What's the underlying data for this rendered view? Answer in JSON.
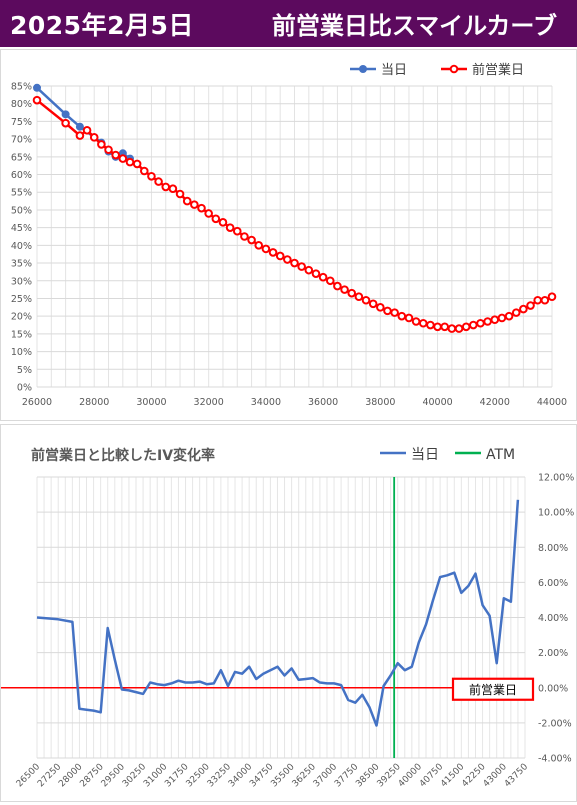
{
  "header": {
    "date": "2025年2月5日",
    "title": "前営業日比スマイルカーブ",
    "background": "#5c0a5e"
  },
  "chart_data": [
    {
      "type": "line",
      "title": "",
      "xlabel": "",
      "ylabel": "",
      "xlim": [
        26000,
        44000
      ],
      "xticks": [
        26000,
        28000,
        30000,
        32000,
        34000,
        36000,
        38000,
        40000,
        42000,
        44000
      ],
      "ylim": [
        0,
        85
      ],
      "yticks": [
        "0%",
        "5%",
        "10%",
        "15%",
        "20%",
        "25%",
        "30%",
        "35%",
        "40%",
        "45%",
        "50%",
        "55%",
        "60%",
        "65%",
        "70%",
        "75%",
        "80%",
        "85%"
      ],
      "grid": true,
      "legend": "top-right",
      "series": [
        {
          "name": "当日",
          "color": "#4472c4",
          "points": [
            [
              26000,
              84.5
            ],
            [
              27000,
              77
            ],
            [
              27500,
              73.5
            ],
            [
              28000,
              70.5
            ],
            [
              28250,
              69
            ],
            [
              28500,
              66.5
            ],
            [
              28750,
              65
            ],
            [
              29000,
              66
            ],
            [
              29250,
              64.5
            ]
          ]
        },
        {
          "name": "前営業日",
          "color": "#ff0000",
          "points": [
            [
              26000,
              81
            ],
            [
              27000,
              74.5
            ],
            [
              27500,
              71
            ],
            [
              27750,
              72.5
            ],
            [
              28000,
              70.5
            ],
            [
              28250,
              68.5
            ],
            [
              28500,
              67
            ],
            [
              28750,
              65.5
            ],
            [
              29000,
              64.5
            ],
            [
              29250,
              63.5
            ],
            [
              29500,
              63
            ],
            [
              29750,
              61
            ],
            [
              30000,
              59.5
            ],
            [
              30250,
              58
            ],
            [
              30500,
              56.5
            ],
            [
              30750,
              56
            ],
            [
              31000,
              54.5
            ],
            [
              31250,
              52.5
            ],
            [
              31500,
              51.5
            ],
            [
              31750,
              50.5
            ],
            [
              32000,
              49
            ],
            [
              32250,
              47.5
            ],
            [
              32500,
              46.5
            ],
            [
              32750,
              45
            ],
            [
              33000,
              44
            ],
            [
              33250,
              42.5
            ],
            [
              33500,
              41.5
            ],
            [
              33750,
              40
            ],
            [
              34000,
              39
            ],
            [
              34250,
              38
            ],
            [
              34500,
              37
            ],
            [
              34750,
              36
            ],
            [
              35000,
              35
            ],
            [
              35250,
              34
            ],
            [
              35500,
              33
            ],
            [
              35750,
              32
            ],
            [
              36000,
              31
            ],
            [
              36250,
              30
            ],
            [
              36500,
              28.5
            ],
            [
              36750,
              27.5
            ],
            [
              37000,
              26.5
            ],
            [
              37250,
              25.5
            ],
            [
              37500,
              24.5
            ],
            [
              37750,
              23.5
            ],
            [
              38000,
              22.5
            ],
            [
              38250,
              21.5
            ],
            [
              38500,
              21
            ],
            [
              38750,
              20
            ],
            [
              39000,
              19.5
            ],
            [
              39250,
              18.5
            ],
            [
              39500,
              18
            ],
            [
              39750,
              17.5
            ],
            [
              40000,
              17
            ],
            [
              40250,
              17
            ],
            [
              40500,
              16.5
            ],
            [
              40750,
              16.5
            ],
            [
              41000,
              17
            ],
            [
              41250,
              17.5
            ],
            [
              41500,
              18
            ],
            [
              41750,
              18.5
            ],
            [
              42000,
              19
            ],
            [
              42250,
              19.5
            ],
            [
              42500,
              20
            ],
            [
              42750,
              21
            ],
            [
              43000,
              22
            ],
            [
              43250,
              23
            ],
            [
              43500,
              24.5
            ],
            [
              43750,
              24.5
            ],
            [
              44000,
              25.5
            ]
          ]
        }
      ]
    },
    {
      "type": "line",
      "title": "前営業日と比較したIV変化率",
      "xlabel": "",
      "ylabel": "",
      "ylim": [
        -4,
        12
      ],
      "yticks": [
        "-4.00%",
        "-2.00%",
        "0.00%",
        "2.00%",
        "4.00%",
        "6.00%",
        "8.00%",
        "10.00%",
        "12.00%"
      ],
      "grid": true,
      "legend": "top-right",
      "xticks": [
        "26500",
        "27250",
        "28000",
        "28750",
        "29500",
        "30250",
        "31000",
        "31750",
        "32500",
        "33250",
        "34000",
        "34750",
        "35500",
        "36250",
        "37000",
        "37750",
        "38500",
        "39250",
        "40000",
        "40750",
        "41500",
        "42250",
        "43000",
        "43750"
      ],
      "atm": 39125,
      "reference_label": "前営業日",
      "series": [
        {
          "name": "当日",
          "color": "#4472c4",
          "points": [
            [
              26500,
              4.0
            ],
            [
              27250,
              3.9
            ],
            [
              27750,
              3.75
            ],
            [
              28000,
              -1.2
            ],
            [
              28250,
              -1.25
            ],
            [
              28500,
              -1.3
            ],
            [
              28750,
              -1.4
            ],
            [
              29000,
              3.4
            ],
            [
              29250,
              1.6
            ],
            [
              29500,
              -0.1
            ],
            [
              29750,
              -0.15
            ],
            [
              30000,
              -0.25
            ],
            [
              30250,
              -0.35
            ],
            [
              30500,
              0.3
            ],
            [
              30750,
              0.2
            ],
            [
              31000,
              0.15
            ],
            [
              31250,
              0.25
            ],
            [
              31500,
              0.4
            ],
            [
              31750,
              0.3
            ],
            [
              32000,
              0.3
            ],
            [
              32250,
              0.35
            ],
            [
              32500,
              0.2
            ],
            [
              32750,
              0.25
            ],
            [
              33000,
              1.0
            ],
            [
              33250,
              0.1
            ],
            [
              33500,
              0.9
            ],
            [
              33750,
              0.8
            ],
            [
              34000,
              1.2
            ],
            [
              34250,
              0.5
            ],
            [
              34500,
              0.8
            ],
            [
              34750,
              1.0
            ],
            [
              35000,
              1.2
            ],
            [
              35250,
              0.7
            ],
            [
              35500,
              1.1
            ],
            [
              35750,
              0.45
            ],
            [
              36000,
              0.5
            ],
            [
              36250,
              0.55
            ],
            [
              36500,
              0.3
            ],
            [
              36750,
              0.25
            ],
            [
              37000,
              0.25
            ],
            [
              37250,
              0.15
            ],
            [
              37500,
              -0.7
            ],
            [
              37750,
              -0.85
            ],
            [
              38000,
              -0.4
            ],
            [
              38250,
              -1.1
            ],
            [
              38500,
              -2.15
            ],
            [
              38750,
              0.1
            ],
            [
              39000,
              0.7
            ],
            [
              39250,
              1.4
            ],
            [
              39500,
              1.0
            ],
            [
              39750,
              1.2
            ],
            [
              40000,
              2.6
            ],
            [
              40250,
              3.6
            ],
            [
              40500,
              5.0
            ],
            [
              40750,
              6.3
            ],
            [
              41000,
              6.4
            ],
            [
              41250,
              6.55
            ],
            [
              41500,
              5.4
            ],
            [
              41750,
              5.8
            ],
            [
              42000,
              6.5
            ],
            [
              42250,
              4.7
            ],
            [
              42500,
              4.1
            ],
            [
              42750,
              1.4
            ],
            [
              43000,
              5.1
            ],
            [
              43250,
              4.9
            ],
            [
              43500,
              10.7
            ]
          ]
        },
        {
          "name": "ATM",
          "color": "#00b050",
          "points": []
        }
      ]
    }
  ]
}
